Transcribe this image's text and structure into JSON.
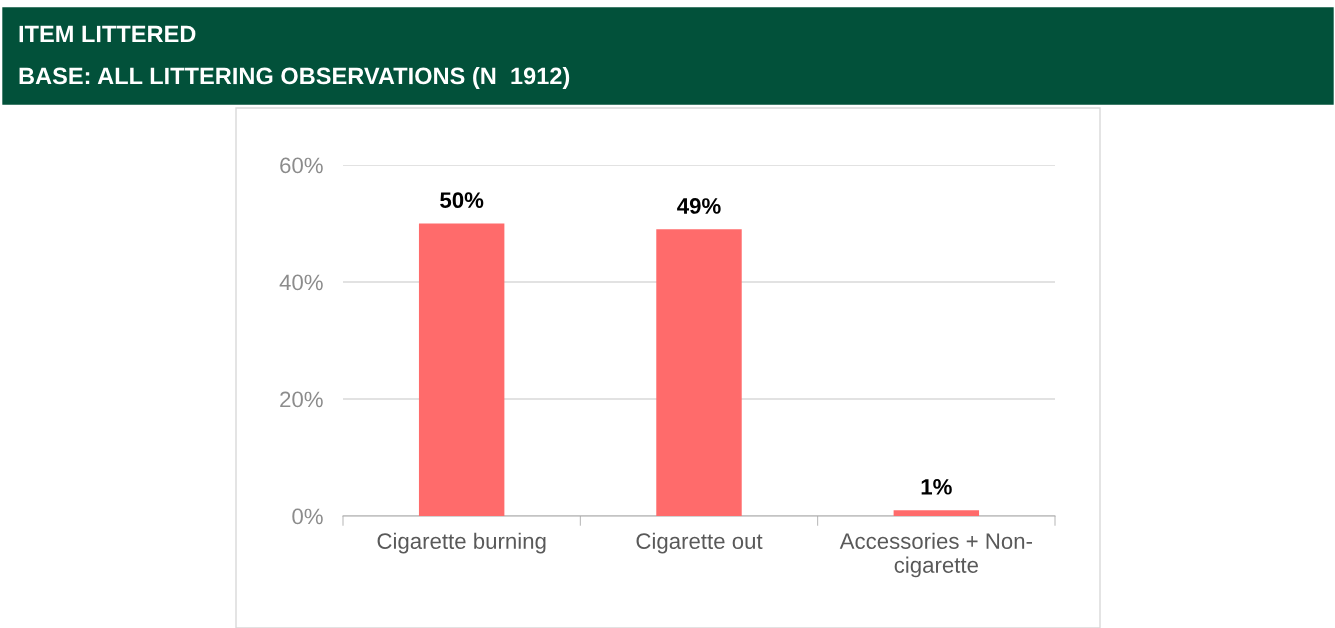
{
  "chart_data": {
    "type": "bar",
    "title": "ITEM LITTERED",
    "subtitle": "BASE: ALL LITTERING OBSERVATIONS (N  1912)",
    "categories": [
      "Cigarette burning",
      "Cigarette out",
      "Accessories + Non-cigarette"
    ],
    "values": [
      50,
      49,
      1
    ],
    "color": "#ff6b6b",
    "ylim": [
      0,
      60
    ],
    "yticks": [
      {
        "value": 0,
        "label": "0%"
      },
      {
        "value": 20,
        "label": "20%"
      },
      {
        "value": 40,
        "label": "40%"
      },
      {
        "value": 60,
        "label": "60%"
      }
    ],
    "grid": "y",
    "data_labels": true,
    "value_labels": [
      "50%",
      "49%",
      "1%"
    ],
    "legend": false
  }
}
